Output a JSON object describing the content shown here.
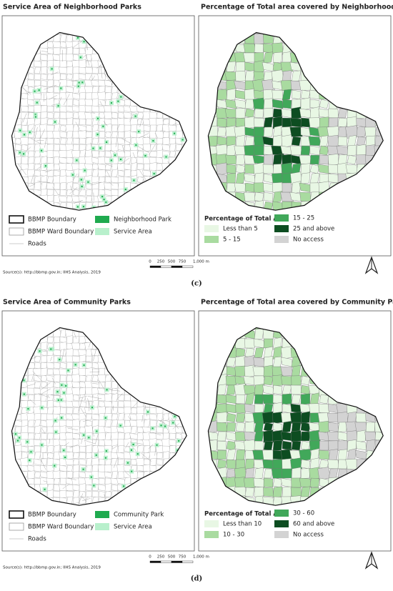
{
  "panels": [
    {
      "left": {
        "title": "Service Area of Neighborhood Parks",
        "legend": [
          "BBMP Boundary",
          "BBMP Ward Boundary",
          "Roads",
          "Neighborhood Park",
          "Service Area"
        ]
      },
      "right": {
        "title": "Percentage of Total area covered by Neighborhood Parks",
        "legend_title": "Percentage of Total Area",
        "legend": [
          "Less than 5",
          "5 - 15",
          "15 - 25",
          "25 and above",
          "No access"
        ]
      },
      "source": "Source(s): http://bbmp.gov.in; IIHS Analysis, 2019",
      "scale": [
        "0",
        "250",
        "500",
        "750",
        "1,000 m"
      ],
      "label": "(c)"
    },
    {
      "left": {
        "title": "Service Area of Community Parks",
        "legend": [
          "BBMP Boundary",
          "BBMP Ward Boundary",
          "Roads",
          "Community Park",
          "Service Area"
        ]
      },
      "right": {
        "title": "Percentage of Total area covered by Community Parks",
        "legend_title": "Percentage of Total Area",
        "legend": [
          "Less than 10",
          "10 - 30",
          "30 - 60",
          "60 and above",
          "No access"
        ]
      },
      "source": "Source(s): http://bbmp.gov.in; IIHS Analysis, 2019",
      "scale": [
        "0",
        "250",
        "500",
        "750",
        "1,000 m"
      ],
      "label": "(d)"
    }
  ]
}
